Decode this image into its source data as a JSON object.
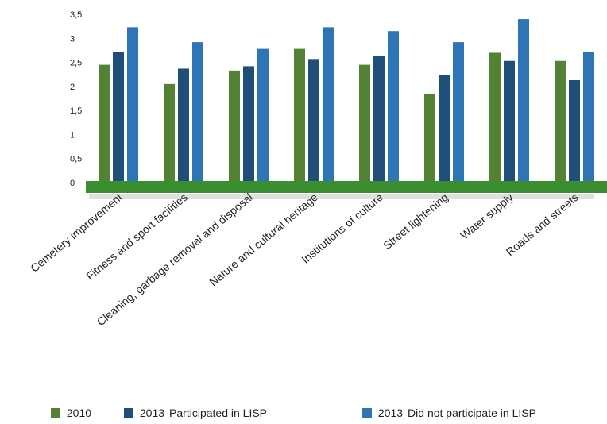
{
  "chart_data": {
    "type": "bar",
    "title": "",
    "xlabel": "",
    "ylabel": "",
    "ylim": [
      0,
      3.5
    ],
    "yticks": [
      "0",
      "0,5",
      "1",
      "1,5",
      "2",
      "2,5",
      "3",
      "3,5"
    ],
    "grid": false,
    "legend_position": "bottom",
    "categories": [
      "Cemetery improvement",
      "Fitness and sport facilities",
      "Cleaning, garbage removal and disposal",
      "Nature and cultural heritage",
      "Institutions of culture",
      "Street lightening",
      "Water supply",
      "Roads and streets"
    ],
    "series": [
      {
        "name": "2010",
        "color": "#548235",
        "values": [
          2.45,
          2.05,
          2.33,
          2.78,
          2.45,
          1.85,
          2.7,
          2.53
        ]
      },
      {
        "name": "2013 Participated in LISP",
        "color": "#1F4E79",
        "values": [
          2.72,
          2.37,
          2.42,
          2.57,
          2.63,
          2.23,
          2.53,
          2.13
        ]
      },
      {
        "name": "2013 Did not participate in LISP",
        "color": "#2E75B6",
        "values": [
          3.23,
          2.92,
          2.78,
          3.23,
          3.15,
          2.92,
          3.4,
          2.72
        ]
      }
    ],
    "baseline_color": "#3A8E2F"
  },
  "legend": [
    {
      "year": "2010",
      "desc": ""
    },
    {
      "year": "2013",
      "desc": "Participated in LISP"
    },
    {
      "year": "2013",
      "desc": "Did not participate in LISP"
    }
  ]
}
